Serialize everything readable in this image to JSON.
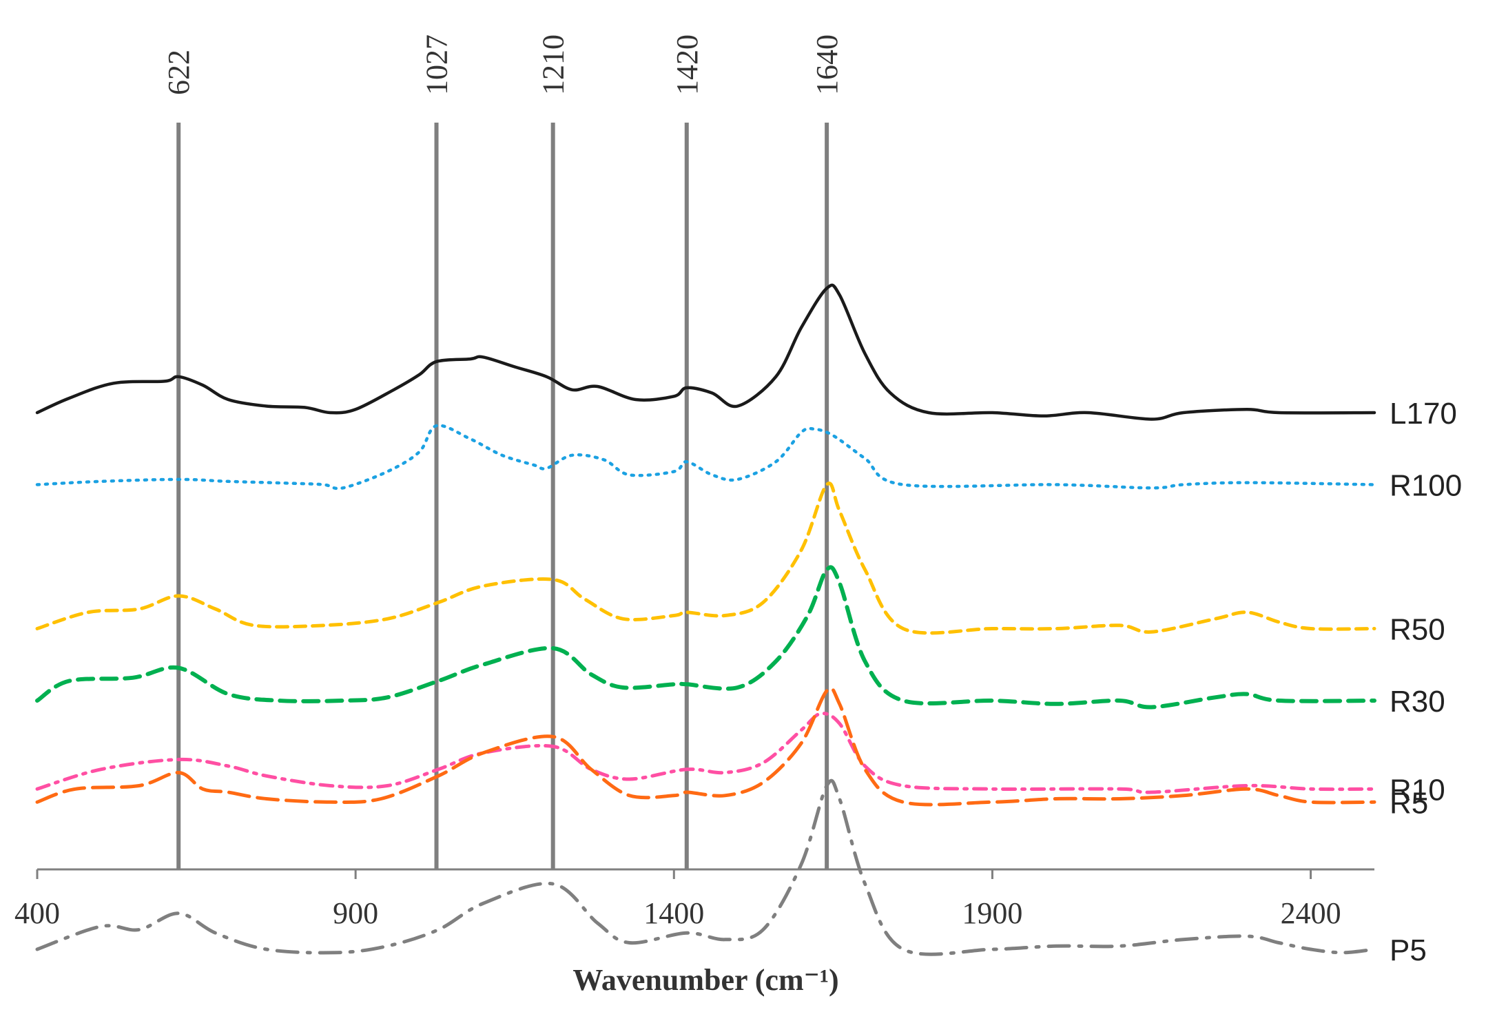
{
  "chart_data": {
    "type": "line",
    "title": "",
    "xlabel": "Wavenumber (cm⁻¹)",
    "ylabel": "",
    "xlim": [
      400,
      2500
    ],
    "xticks": [
      400,
      900,
      1400,
      1900,
      2400
    ],
    "grid": false,
    "reference_lines": [
      622,
      1027,
      1210,
      1420,
      1640
    ],
    "series": [
      {
        "name": "L170",
        "color": "#1a1a1a",
        "style": "solid",
        "offset": 6.8,
        "points": [
          [
            400,
            0.0
          ],
          [
            450,
            0.22
          ],
          [
            520,
            0.45
          ],
          [
            600,
            0.48
          ],
          [
            622,
            0.55
          ],
          [
            660,
            0.42
          ],
          [
            700,
            0.2
          ],
          [
            760,
            0.1
          ],
          [
            820,
            0.08
          ],
          [
            860,
            0.0
          ],
          [
            900,
            0.05
          ],
          [
            960,
            0.35
          ],
          [
            1000,
            0.58
          ],
          [
            1027,
            0.78
          ],
          [
            1080,
            0.82
          ],
          [
            1100,
            0.85
          ],
          [
            1150,
            0.7
          ],
          [
            1200,
            0.55
          ],
          [
            1240,
            0.35
          ],
          [
            1280,
            0.4
          ],
          [
            1340,
            0.2
          ],
          [
            1400,
            0.25
          ],
          [
            1420,
            0.38
          ],
          [
            1460,
            0.3
          ],
          [
            1500,
            0.1
          ],
          [
            1560,
            0.55
          ],
          [
            1600,
            1.3
          ],
          [
            1640,
            1.9
          ],
          [
            1660,
            1.8
          ],
          [
            1700,
            0.9
          ],
          [
            1740,
            0.3
          ],
          [
            1800,
            0.0
          ],
          [
            1900,
            0.0
          ],
          [
            1980,
            -0.05
          ],
          [
            2050,
            0.0
          ],
          [
            2150,
            -0.1
          ],
          [
            2200,
            0.0
          ],
          [
            2300,
            0.05
          ],
          [
            2350,
            0.0
          ],
          [
            2500,
            0.0
          ]
        ]
      },
      {
        "name": "R100",
        "color": "#1ba1e2",
        "style": "dotted",
        "offset": 5.7,
        "points": [
          [
            400,
            0.0
          ],
          [
            500,
            0.05
          ],
          [
            622,
            0.08
          ],
          [
            700,
            0.05
          ],
          [
            800,
            0.02
          ],
          [
            850,
            0.0
          ],
          [
            880,
            -0.05
          ],
          [
            950,
            0.2
          ],
          [
            1000,
            0.5
          ],
          [
            1027,
            0.9
          ],
          [
            1080,
            0.7
          ],
          [
            1130,
            0.45
          ],
          [
            1180,
            0.3
          ],
          [
            1200,
            0.25
          ],
          [
            1240,
            0.45
          ],
          [
            1290,
            0.38
          ],
          [
            1330,
            0.15
          ],
          [
            1400,
            0.2
          ],
          [
            1420,
            0.35
          ],
          [
            1460,
            0.15
          ],
          [
            1500,
            0.08
          ],
          [
            1560,
            0.35
          ],
          [
            1600,
            0.8
          ],
          [
            1620,
            0.85
          ],
          [
            1650,
            0.75
          ],
          [
            1700,
            0.4
          ],
          [
            1760,
            0.0
          ],
          [
            2000,
            0.0
          ],
          [
            2150,
            -0.05
          ],
          [
            2200,
            0.0
          ],
          [
            2300,
            0.03
          ],
          [
            2500,
            0.0
          ]
        ]
      },
      {
        "name": "R50",
        "color": "#ffc000",
        "style": "dashed",
        "offset": 3.5,
        "points": [
          [
            400,
            0.0
          ],
          [
            480,
            0.25
          ],
          [
            560,
            0.3
          ],
          [
            622,
            0.5
          ],
          [
            680,
            0.3
          ],
          [
            740,
            0.05
          ],
          [
            850,
            0.05
          ],
          [
            950,
            0.15
          ],
          [
            1030,
            0.4
          ],
          [
            1100,
            0.65
          ],
          [
            1210,
            0.75
          ],
          [
            1260,
            0.45
          ],
          [
            1320,
            0.15
          ],
          [
            1400,
            0.2
          ],
          [
            1420,
            0.25
          ],
          [
            1480,
            0.2
          ],
          [
            1540,
            0.4
          ],
          [
            1600,
            1.2
          ],
          [
            1640,
            2.2
          ],
          [
            1660,
            1.8
          ],
          [
            1700,
            0.9
          ],
          [
            1760,
            0.0
          ],
          [
            1900,
            0.0
          ],
          [
            2000,
            0.0
          ],
          [
            2100,
            0.05
          ],
          [
            2150,
            -0.05
          ],
          [
            2250,
            0.15
          ],
          [
            2300,
            0.25
          ],
          [
            2350,
            0.1
          ],
          [
            2400,
            0.0
          ],
          [
            2500,
            0.0
          ]
        ]
      },
      {
        "name": "R30",
        "color": "#00b050",
        "style": "dashed-long",
        "offset": 2.4,
        "points": [
          [
            400,
            0.0
          ],
          [
            450,
            0.3
          ],
          [
            550,
            0.35
          ],
          [
            622,
            0.5
          ],
          [
            700,
            0.1
          ],
          [
            780,
            0.0
          ],
          [
            880,
            0.0
          ],
          [
            950,
            0.05
          ],
          [
            1030,
            0.3
          ],
          [
            1100,
            0.55
          ],
          [
            1210,
            0.8
          ],
          [
            1270,
            0.4
          ],
          [
            1320,
            0.2
          ],
          [
            1400,
            0.25
          ],
          [
            1420,
            0.25
          ],
          [
            1500,
            0.2
          ],
          [
            1560,
            0.6
          ],
          [
            1610,
            1.3
          ],
          [
            1640,
            2.0
          ],
          [
            1660,
            1.8
          ],
          [
            1700,
            0.6
          ],
          [
            1760,
            0.0
          ],
          [
            1900,
            0.0
          ],
          [
            2000,
            -0.05
          ],
          [
            2100,
            0.0
          ],
          [
            2150,
            -0.1
          ],
          [
            2250,
            0.05
          ],
          [
            2300,
            0.1
          ],
          [
            2350,
            0.0
          ],
          [
            2500,
            0.0
          ]
        ]
      },
      {
        "name": "R10",
        "color": "#ff4fa3",
        "style": "dashdot",
        "offset": 1.05,
        "points": [
          [
            400,
            0.0
          ],
          [
            500,
            0.3
          ],
          [
            622,
            0.45
          ],
          [
            700,
            0.35
          ],
          [
            760,
            0.2
          ],
          [
            860,
            0.05
          ],
          [
            950,
            0.05
          ],
          [
            1030,
            0.3
          ],
          [
            1100,
            0.55
          ],
          [
            1210,
            0.65
          ],
          [
            1270,
            0.3
          ],
          [
            1330,
            0.15
          ],
          [
            1420,
            0.3
          ],
          [
            1480,
            0.25
          ],
          [
            1540,
            0.4
          ],
          [
            1600,
            0.9
          ],
          [
            1630,
            1.15
          ],
          [
            1660,
            1.0
          ],
          [
            1700,
            0.35
          ],
          [
            1760,
            0.05
          ],
          [
            1900,
            0.0
          ],
          [
            2100,
            0.0
          ],
          [
            2150,
            -0.05
          ],
          [
            2300,
            0.05
          ],
          [
            2400,
            0.0
          ],
          [
            2500,
            0.0
          ]
        ]
      },
      {
        "name": "R5",
        "color": "#ff6a13",
        "style": "dashed-longer",
        "offset": 0.85,
        "points": [
          [
            400,
            0.0
          ],
          [
            460,
            0.2
          ],
          [
            560,
            0.25
          ],
          [
            622,
            0.45
          ],
          [
            660,
            0.2
          ],
          [
            700,
            0.15
          ],
          [
            760,
            0.05
          ],
          [
            860,
            0.0
          ],
          [
            940,
            0.05
          ],
          [
            1030,
            0.4
          ],
          [
            1100,
            0.75
          ],
          [
            1210,
            1.0
          ],
          [
            1270,
            0.5
          ],
          [
            1330,
            0.1
          ],
          [
            1400,
            0.1
          ],
          [
            1420,
            0.15
          ],
          [
            1480,
            0.1
          ],
          [
            1540,
            0.3
          ],
          [
            1600,
            0.9
          ],
          [
            1640,
            1.7
          ],
          [
            1660,
            1.5
          ],
          [
            1700,
            0.5
          ],
          [
            1760,
            0.0
          ],
          [
            1900,
            0.0
          ],
          [
            2000,
            0.05
          ],
          [
            2100,
            0.05
          ],
          [
            2200,
            0.1
          ],
          [
            2300,
            0.2
          ],
          [
            2350,
            0.1
          ],
          [
            2400,
            0.0
          ],
          [
            2500,
            0.0
          ]
        ]
      },
      {
        "name": "P5",
        "color": "#7f7f7f",
        "style": "dashdot-long",
        "offset": -1.4,
        "points": [
          [
            400,
            0.0
          ],
          [
            500,
            0.35
          ],
          [
            560,
            0.3
          ],
          [
            622,
            0.55
          ],
          [
            680,
            0.25
          ],
          [
            760,
            0.0
          ],
          [
            870,
            -0.05
          ],
          [
            950,
            0.05
          ],
          [
            1030,
            0.3
          ],
          [
            1100,
            0.7
          ],
          [
            1210,
            1.0
          ],
          [
            1280,
            0.4
          ],
          [
            1330,
            0.1
          ],
          [
            1420,
            0.25
          ],
          [
            1480,
            0.15
          ],
          [
            1540,
            0.3
          ],
          [
            1600,
            1.3
          ],
          [
            1640,
            2.5
          ],
          [
            1660,
            2.3
          ],
          [
            1700,
            1.0
          ],
          [
            1760,
            0.0
          ],
          [
            1900,
            0.0
          ],
          [
            2000,
            0.05
          ],
          [
            2100,
            0.05
          ],
          [
            2200,
            0.15
          ],
          [
            2300,
            0.2
          ],
          [
            2350,
            0.1
          ],
          [
            2400,
            0.0
          ],
          [
            2450,
            -0.05
          ],
          [
            2500,
            0.0
          ]
        ]
      }
    ]
  },
  "colors": {
    "axis": "#7f7f7f",
    "reference": "#7f7f7f",
    "text": "#333333"
  }
}
